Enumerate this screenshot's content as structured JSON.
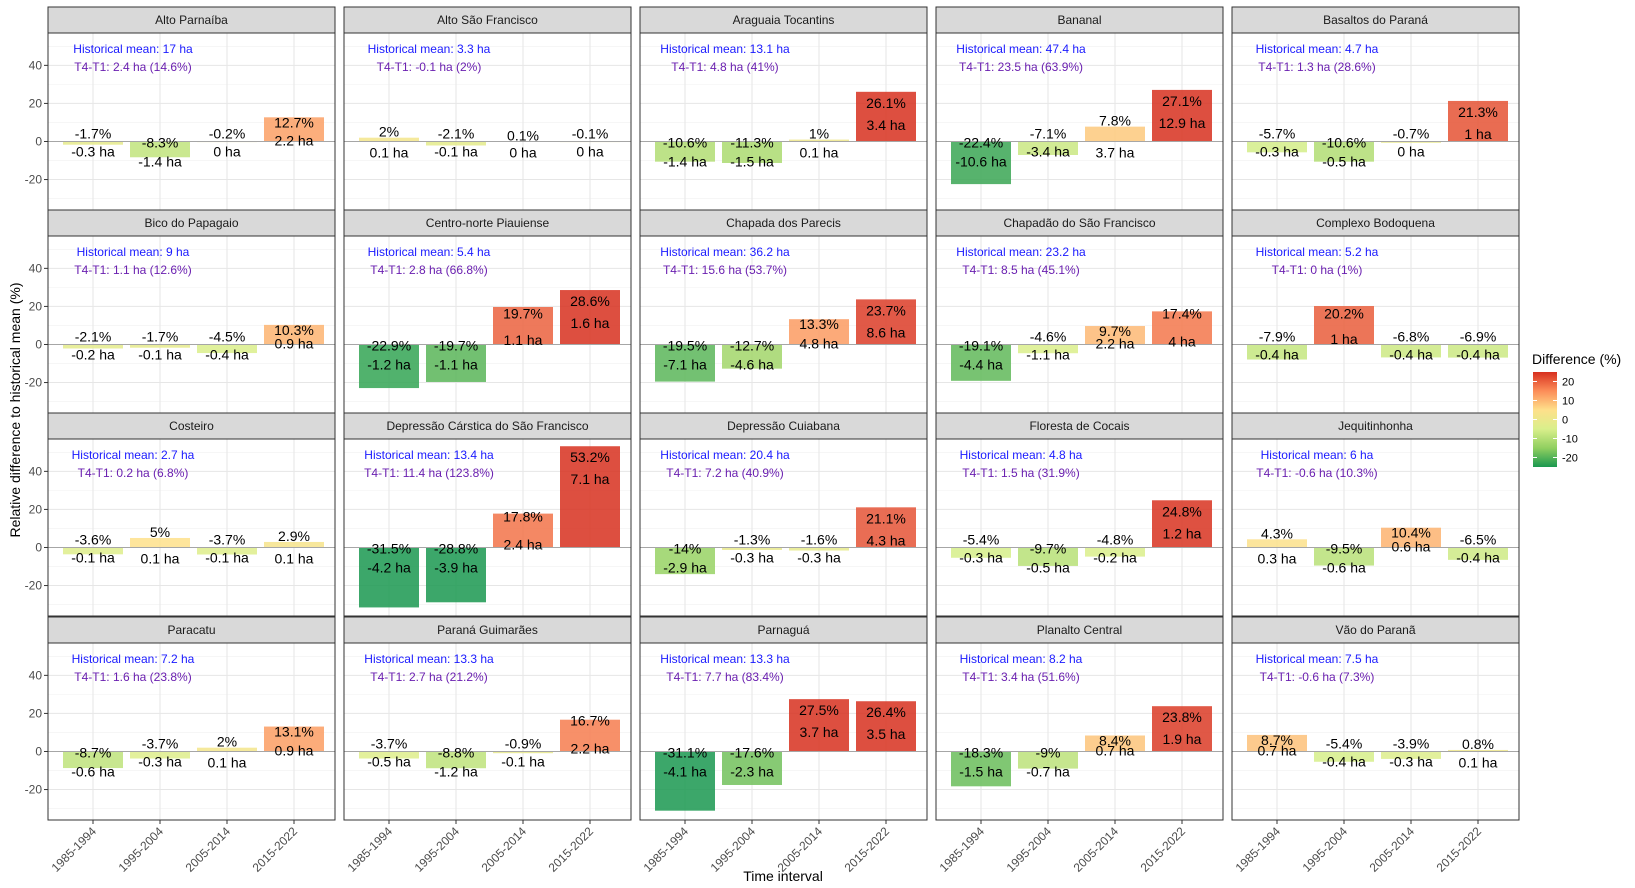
{
  "chart_data": {
    "type": "bar",
    "facet": "grid-4x5",
    "categories": [
      "1985-1994",
      "1995-2004",
      "2005-2014",
      "2015-2022"
    ],
    "xlabel": "Time interval",
    "ylabel": "Relative difference to historical mean (%)",
    "ylim": [
      -36,
      57
    ],
    "yticks": [
      -20,
      0,
      20,
      40
    ],
    "grid": true,
    "legend": {
      "title": "Difference (%)",
      "position": "right",
      "ticks": [
        20,
        10,
        0,
        -10,
        -20
      ],
      "colors": [
        "#d7301f",
        "#fc8d59",
        "#fee08b",
        "#d9ef8b",
        "#91cf60",
        "#1a9850"
      ]
    },
    "panels": [
      {
        "name": "Alto Parnaíba",
        "mean": "Historical mean: 17 ha",
        "diff": "T4-T1: 2.4 ha (14.6%)",
        "values": [
          -1.7,
          -8.3,
          -0.2,
          12.7
        ],
        "pct_labels": [
          "-1.7%",
          "-8.3%",
          "-0.2%",
          "12.7%"
        ],
        "ha_labels": [
          "-0.3 ha",
          "-1.4 ha",
          "0 ha",
          "2.2 ha"
        ]
      },
      {
        "name": "Alto São Francisco",
        "mean": "Historical mean: 3.3 ha",
        "diff": "T4-T1: -0.1 ha (2%)",
        "values": [
          2,
          -2.1,
          0.1,
          -0.1
        ],
        "pct_labels": [
          "2%",
          "-2.1%",
          "0.1%",
          "-0.1%"
        ],
        "ha_labels": [
          "0.1 ha",
          "-0.1 ha",
          "0 ha",
          "0 ha"
        ]
      },
      {
        "name": "Araguaia Tocantins",
        "mean": "Historical mean: 13.1 ha",
        "diff": "T4-T1: 4.8 ha (41%)",
        "values": [
          -10.6,
          -11.3,
          1,
          26.1
        ],
        "pct_labels": [
          "-10.6%",
          "-11.3%",
          "1%",
          "26.1%"
        ],
        "ha_labels": [
          "-1.4 ha",
          "-1.5 ha",
          "0.1 ha",
          "3.4 ha"
        ]
      },
      {
        "name": "Bananal",
        "mean": "Historical mean: 47.4 ha",
        "diff": "T4-T1: 23.5 ha (63.9%)",
        "values": [
          -22.4,
          -7.1,
          7.8,
          27.1
        ],
        "pct_labels": [
          "-22.4%",
          "-7.1%",
          "7.8%",
          "27.1%"
        ],
        "ha_labels": [
          "-10.6 ha",
          "-3.4 ha",
          "3.7 ha",
          "12.9 ha"
        ]
      },
      {
        "name": "Basaltos do Paraná",
        "mean": "Historical mean: 4.7 ha",
        "diff": "T4-T1: 1.3 ha (28.6%)",
        "values": [
          -5.7,
          -10.6,
          -0.7,
          21.3
        ],
        "pct_labels": [
          "-5.7%",
          "-10.6%",
          "-0.7%",
          "21.3%"
        ],
        "ha_labels": [
          "-0.3 ha",
          "-0.5 ha",
          "0 ha",
          "1 ha"
        ]
      },
      {
        "name": "Bico do Papagaio",
        "mean": "Historical mean: 9 ha",
        "diff": "T4-T1: 1.1 ha (12.6%)",
        "values": [
          -2.1,
          -1.7,
          -4.5,
          10.3
        ],
        "pct_labels": [
          "-2.1%",
          "-1.7%",
          "-4.5%",
          "10.3%"
        ],
        "ha_labels": [
          "-0.2 ha",
          "-0.1 ha",
          "-0.4 ha",
          "0.9 ha"
        ]
      },
      {
        "name": "Centro-norte Piauiense",
        "mean": "Historical mean: 5.4 ha",
        "diff": "T4-T1: 2.8 ha (66.8%)",
        "values": [
          -22.9,
          -19.7,
          19.7,
          28.6
        ],
        "pct_labels": [
          "-22.9%",
          "-19.7%",
          "19.7%",
          "28.6%"
        ],
        "ha_labels": [
          "-1.2 ha",
          "-1.1 ha",
          "1.1 ha",
          "1.6 ha"
        ]
      },
      {
        "name": "Chapada dos Parecis",
        "mean": "Historical mean: 36.2 ha",
        "diff": "T4-T1: 15.6 ha (53.7%)",
        "values": [
          -19.5,
          -12.7,
          13.3,
          23.7
        ],
        "pct_labels": [
          "-19.5%",
          "-12.7%",
          "13.3%",
          "23.7%"
        ],
        "ha_labels": [
          "-7.1 ha",
          "-4.6 ha",
          "4.8 ha",
          "8.6 ha"
        ]
      },
      {
        "name": "Chapadão do São Francisco",
        "mean": "Historical mean: 23.2 ha",
        "diff": "T4-T1: 8.5 ha (45.1%)",
        "values": [
          -19.1,
          -4.6,
          9.7,
          17.4
        ],
        "pct_labels": [
          "-19.1%",
          "-4.6%",
          "9.7%",
          "17.4%"
        ],
        "ha_labels": [
          "-4.4 ha",
          "-1.1 ha",
          "2.2 ha",
          "4 ha"
        ]
      },
      {
        "name": "Complexo Bodoquena",
        "mean": "Historical mean: 5.2 ha",
        "diff": "T4-T1: 0 ha (1%)",
        "values": [
          -7.9,
          20.2,
          -6.8,
          -6.9
        ],
        "pct_labels": [
          "-7.9%",
          "20.2%",
          "-6.8%",
          "-6.9%"
        ],
        "ha_labels": [
          "-0.4 ha",
          "1 ha",
          "-0.4 ha",
          "-0.4 ha"
        ]
      },
      {
        "name": "Costeiro",
        "mean": "Historical mean: 2.7 ha",
        "diff": "T4-T1: 0.2 ha (6.8%)",
        "values": [
          -3.6,
          5,
          -3.7,
          2.9
        ],
        "pct_labels": [
          "-3.6%",
          "5%",
          "-3.7%",
          "2.9%"
        ],
        "ha_labels": [
          "-0.1 ha",
          "0.1 ha",
          "-0.1 ha",
          "0.1 ha"
        ]
      },
      {
        "name": "Depressão Cárstica do São Francisco",
        "mean": "Historical mean: 13.4 ha",
        "diff": "T4-T1: 11.4 ha (123.8%)",
        "values": [
          -31.5,
          -28.8,
          17.8,
          53.2
        ],
        "pct_labels": [
          "-31.5%",
          "-28.8%",
          "17.8%",
          "53.2%"
        ],
        "ha_labels": [
          "-4.2 ha",
          "-3.9 ha",
          "2.4 ha",
          "7.1 ha"
        ]
      },
      {
        "name": "Depressão Cuiabana",
        "mean": "Historical mean: 20.4 ha",
        "diff": "T4-T1: 7.2 ha (40.9%)",
        "values": [
          -14,
          -1.3,
          -1.6,
          21.1
        ],
        "pct_labels": [
          "-14%",
          "-1.3%",
          "-1.6%",
          "21.1%"
        ],
        "ha_labels": [
          "-2.9 ha",
          "-0.3 ha",
          "-0.3 ha",
          "4.3 ha"
        ]
      },
      {
        "name": "Floresta de Cocais",
        "mean": "Historical mean: 4.8 ha",
        "diff": "T4-T1: 1.5 ha (31.9%)",
        "values": [
          -5.4,
          -9.7,
          -4.8,
          24.8
        ],
        "pct_labels": [
          "-5.4%",
          "-9.7%",
          "-4.8%",
          "24.8%"
        ],
        "ha_labels": [
          "-0.3 ha",
          "-0.5 ha",
          "-0.2 ha",
          "1.2 ha"
        ]
      },
      {
        "name": "Jequitinhonha",
        "mean": "Historical mean: 6 ha",
        "diff": "T4-T1: -0.6 ha (10.3%)",
        "values": [
          4.3,
          -9.5,
          10.4,
          -6.5
        ],
        "pct_labels": [
          "4.3%",
          "-9.5%",
          "10.4%",
          "-6.5%"
        ],
        "ha_labels": [
          "0.3 ha",
          "-0.6 ha",
          "0.6 ha",
          "-0.4 ha"
        ]
      },
      {
        "name": "Paracatu",
        "mean": "Historical mean: 7.2 ha",
        "diff": "T4-T1: 1.6 ha (23.8%)",
        "values": [
          -8.7,
          -3.7,
          2,
          13.1
        ],
        "pct_labels": [
          "-8.7%",
          "-3.7%",
          "2%",
          "13.1%"
        ],
        "ha_labels": [
          "-0.6 ha",
          "-0.3 ha",
          "0.1 ha",
          "0.9 ha"
        ]
      },
      {
        "name": "Paraná Guimarães",
        "mean": "Historical mean: 13.3 ha",
        "diff": "T4-T1: 2.7 ha (21.2%)",
        "values": [
          -3.7,
          -8.8,
          -0.9,
          16.7
        ],
        "pct_labels": [
          "-3.7%",
          "-8.8%",
          "-0.9%",
          "16.7%"
        ],
        "ha_labels": [
          "-0.5 ha",
          "-1.2 ha",
          "-0.1 ha",
          "2.2 ha"
        ]
      },
      {
        "name": "Parnaguá",
        "mean": "Historical mean: 13.3 ha",
        "diff": "T4-T1: 7.7 ha (83.4%)",
        "values": [
          -31.1,
          -17.6,
          27.5,
          26.4
        ],
        "pct_labels": [
          "-31.1%",
          "-17.6%",
          "27.5%",
          "26.4%"
        ],
        "ha_labels": [
          "-4.1 ha",
          "-2.3 ha",
          "3.7 ha",
          "3.5 ha"
        ]
      },
      {
        "name": "Planalto Central",
        "mean": "Historical mean: 8.2 ha",
        "diff": "T4-T1: 3.4 ha (51.6%)",
        "values": [
          -18.3,
          -9,
          8.4,
          23.8
        ],
        "pct_labels": [
          "-18.3%",
          "-9%",
          "8.4%",
          "23.8%"
        ],
        "ha_labels": [
          "-1.5 ha",
          "-0.7 ha",
          "0.7 ha",
          "1.9 ha"
        ]
      },
      {
        "name": "Vão do Paranã",
        "mean": "Historical mean: 7.5 ha",
        "diff": "T4-T1: -0.6 ha (7.3%)",
        "values": [
          8.7,
          -5.4,
          -3.9,
          0.8
        ],
        "pct_labels": [
          "8.7%",
          "-5.4%",
          "-3.9%",
          "0.8%"
        ],
        "ha_labels": [
          "0.7 ha",
          "-0.4 ha",
          "-0.3 ha",
          "0.1 ha"
        ]
      }
    ]
  }
}
